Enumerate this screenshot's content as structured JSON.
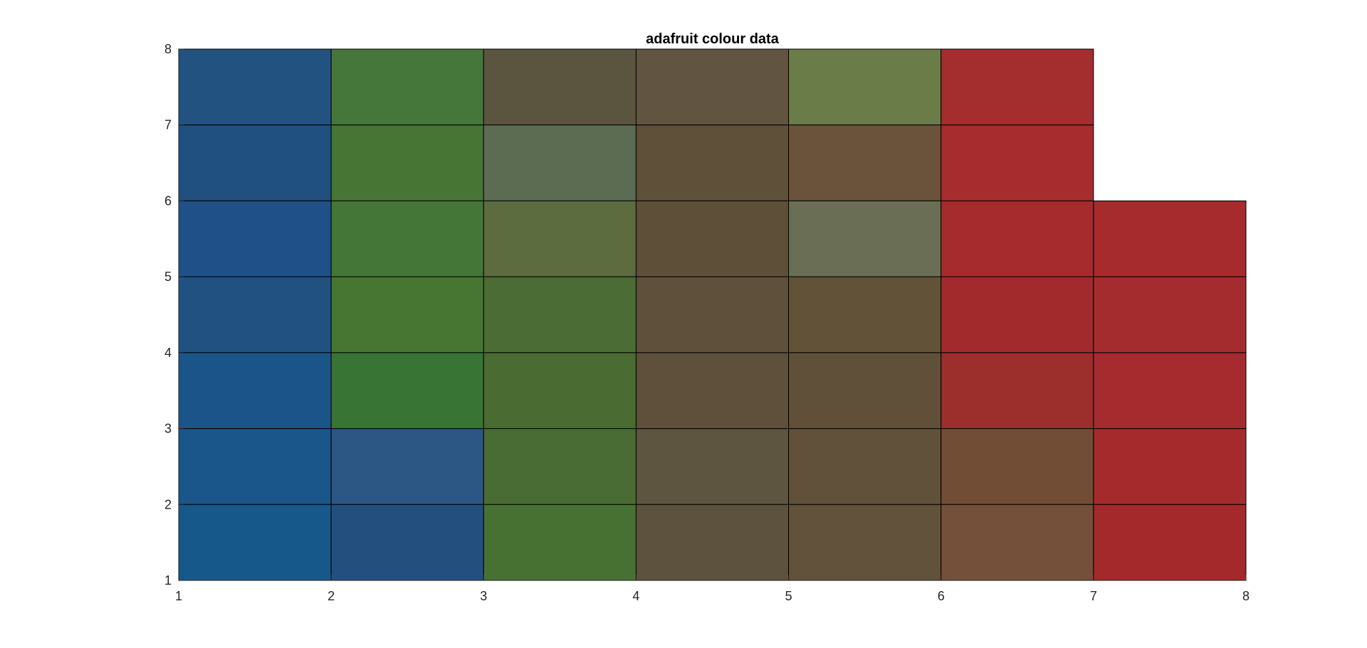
{
  "chart_data": {
    "type": "heatmap",
    "title": "adafruit colour data",
    "xlabel": "",
    "ylabel": "",
    "xlim": [
      1,
      8
    ],
    "ylim": [
      1,
      8
    ],
    "x_ticks": [
      "1",
      "2",
      "3",
      "4",
      "5",
      "6",
      "7",
      "8"
    ],
    "y_ticks": [
      "1",
      "2",
      "3",
      "4",
      "5",
      "6",
      "7",
      "8"
    ],
    "grid": false,
    "cells": [
      {
        "x": 1,
        "y": 7,
        "color": "#22527f"
      },
      {
        "x": 1,
        "y": 6,
        "color": "#20507f"
      },
      {
        "x": 1,
        "y": 5,
        "color": "#1f5087"
      },
      {
        "x": 1,
        "y": 4,
        "color": "#215181"
      },
      {
        "x": 1,
        "y": 3,
        "color": "#1b5489"
      },
      {
        "x": 1,
        "y": 2,
        "color": "#1a568a"
      },
      {
        "x": 1,
        "y": 1,
        "color": "#17588a"
      },
      {
        "x": 2,
        "y": 7,
        "color": "#45763a"
      },
      {
        "x": 2,
        "y": 6,
        "color": "#467534"
      },
      {
        "x": 2,
        "y": 5,
        "color": "#437637"
      },
      {
        "x": 2,
        "y": 4,
        "color": "#467632"
      },
      {
        "x": 2,
        "y": 3,
        "color": "#387534"
      },
      {
        "x": 2,
        "y": 2,
        "color": "#2c5683"
      },
      {
        "x": 2,
        "y": 1,
        "color": "#234f7e"
      },
      {
        "x": 3,
        "y": 7,
        "color": "#5b5540"
      },
      {
        "x": 3,
        "y": 6,
        "color": "#5b6c53"
      },
      {
        "x": 3,
        "y": 5,
        "color": "#5c6c3f"
      },
      {
        "x": 3,
        "y": 4,
        "color": "#4b6c34"
      },
      {
        "x": 3,
        "y": 3,
        "color": "#4a6c33"
      },
      {
        "x": 3,
        "y": 2,
        "color": "#486c33"
      },
      {
        "x": 3,
        "y": 1,
        "color": "#477132"
      },
      {
        "x": 4,
        "y": 7,
        "color": "#615441"
      },
      {
        "x": 4,
        "y": 6,
        "color": "#5e5039"
      },
      {
        "x": 4,
        "y": 5,
        "color": "#5e4f38"
      },
      {
        "x": 4,
        "y": 4,
        "color": "#5f503b"
      },
      {
        "x": 4,
        "y": 3,
        "color": "#5e503b"
      },
      {
        "x": 4,
        "y": 2,
        "color": "#5e5540"
      },
      {
        "x": 4,
        "y": 1,
        "color": "#5d523d"
      },
      {
        "x": 5,
        "y": 7,
        "color": "#6a7c47"
      },
      {
        "x": 5,
        "y": 6,
        "color": "#6b523b"
      },
      {
        "x": 5,
        "y": 5,
        "color": "#696e54"
      },
      {
        "x": 5,
        "y": 4,
        "color": "#625237"
      },
      {
        "x": 5,
        "y": 3,
        "color": "#615039"
      },
      {
        "x": 5,
        "y": 2,
        "color": "#61503a"
      },
      {
        "x": 5,
        "y": 1,
        "color": "#62513b"
      },
      {
        "x": 6,
        "y": 7,
        "color": "#a42d2e"
      },
      {
        "x": 6,
        "y": 6,
        "color": "#a62c2e"
      },
      {
        "x": 6,
        "y": 5,
        "color": "#a52b2d"
      },
      {
        "x": 6,
        "y": 4,
        "color": "#a22a2c"
      },
      {
        "x": 6,
        "y": 3,
        "color": "#9c2e2c"
      },
      {
        "x": 6,
        "y": 2,
        "color": "#724d35"
      },
      {
        "x": 6,
        "y": 1,
        "color": "#744f3a"
      },
      {
        "x": 7,
        "y": 5,
        "color": "#a52b2d"
      },
      {
        "x": 7,
        "y": 4,
        "color": "#a42c2f"
      },
      {
        "x": 7,
        "y": 3,
        "color": "#a52b2e"
      },
      {
        "x": 7,
        "y": 2,
        "color": "#a52a2c"
      },
      {
        "x": 7,
        "y": 1,
        "color": "#a4292b"
      }
    ]
  }
}
